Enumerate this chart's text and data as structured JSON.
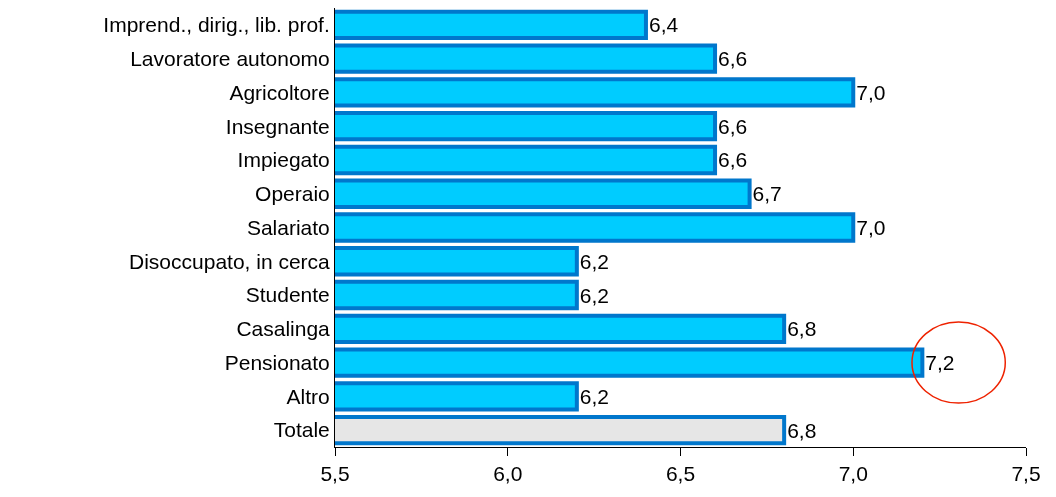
{
  "chart_data": {
    "type": "bar",
    "orientation": "horizontal",
    "categories": [
      "Imprend., dirig., lib. prof.",
      "Lavoratore autonomo",
      "Agricoltore",
      "Insegnante",
      "Impiegato",
      "Operaio",
      "Salariato",
      "Disoccupato, in cerca",
      "Studente",
      "Casalinga",
      "Pensionato",
      "Altro",
      "Totale"
    ],
    "values": [
      6.4,
      6.6,
      7.0,
      6.6,
      6.6,
      6.7,
      7.0,
      6.2,
      6.2,
      6.8,
      7.2,
      6.2,
      6.8
    ],
    "colors": [
      "#00ccff",
      "#00ccff",
      "#00ccff",
      "#00ccff",
      "#00ccff",
      "#00ccff",
      "#00ccff",
      "#00ccff",
      "#00ccff",
      "#00ccff",
      "#00ccff",
      "#00ccff",
      "#e6e6e6"
    ],
    "value_labels": [
      "6,4",
      "6,6",
      "7,0",
      "6,6",
      "6,6",
      "6,7",
      "7,0",
      "6,2",
      "6,2",
      "6,8",
      "7,2",
      "6,2",
      "6,8"
    ],
    "xlim": [
      5.5,
      7.5
    ],
    "xticks": [
      {
        "value": 5.5,
        "label": "5,5"
      },
      {
        "value": 6.0,
        "label": "6,0"
      },
      {
        "value": 6.5,
        "label": "6,5"
      },
      {
        "value": 7.0,
        "label": "7,0"
      },
      {
        "value": 7.5,
        "label": "7,5"
      }
    ],
    "grid": false
  }
}
